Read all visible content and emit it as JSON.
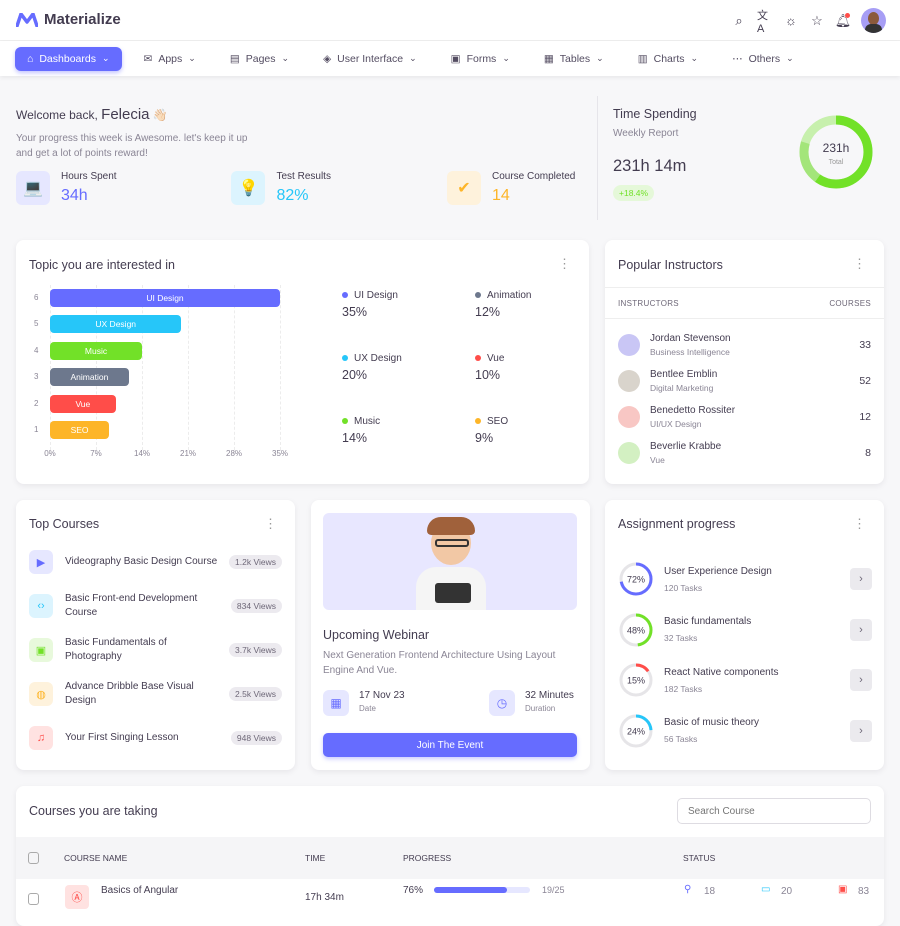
{
  "app": {
    "title": "Materialize"
  },
  "nav": [
    {
      "label": "Dashboards",
      "icon": "home-icon",
      "active": true
    },
    {
      "label": "Apps",
      "icon": "mail-icon"
    },
    {
      "label": "Pages",
      "icon": "file-icon"
    },
    {
      "label": "User Interface",
      "icon": "layers-icon"
    },
    {
      "label": "Forms",
      "icon": "form-icon"
    },
    {
      "label": "Tables",
      "icon": "table-icon"
    },
    {
      "label": "Charts",
      "icon": "chart-icon"
    },
    {
      "label": "Others",
      "icon": "more-icon"
    }
  ],
  "welcome": {
    "greeting": "Welcome back,",
    "name": "Felecia",
    "emoji": "👋🏻",
    "text": "Your progress this week is Awesome. let's keep it up and get a lot of points reward!",
    "stats": [
      {
        "label": "Hours Spent",
        "value": "34h",
        "color": "#666cff",
        "bg": "#e6e7ff",
        "icon": "laptop-icon",
        "glyph": "💻"
      },
      {
        "label": "Test Results",
        "value": "82%",
        "color": "#26c6f9",
        "bg": "#dcf4fe",
        "icon": "lightbulb-icon",
        "glyph": "💡"
      },
      {
        "label": "Course Completed",
        "value": "14",
        "color": "#fdb528",
        "bg": "#fef2dc",
        "icon": "badge-check-icon",
        "glyph": "✔"
      }
    ]
  },
  "time_spending": {
    "title": "Time Spending",
    "subtitle": "Weekly Report",
    "value": "231h 14m",
    "change": "+18.4%",
    "donut_value": "231h",
    "donut_label": "Total"
  },
  "topics": {
    "title": "Topic you are interested in",
    "chart_data": {
      "type": "bar",
      "orientation": "horizontal",
      "categories": [
        "UI Design",
        "UX Design",
        "Music",
        "Animation",
        "Vue",
        "SEO"
      ],
      "values": [
        35,
        20,
        14,
        12,
        10,
        9
      ],
      "y_ticks": [
        "6",
        "5",
        "4",
        "3",
        "2",
        "1"
      ],
      "x_ticks": [
        "0%",
        "7%",
        "14%",
        "21%",
        "28%",
        "35%"
      ],
      "xlim": [
        0,
        35
      ],
      "colors": [
        "#666cff",
        "#26c6f9",
        "#72e128",
        "#6d788d",
        "#ff4d49",
        "#fdb528"
      ]
    },
    "legend": [
      {
        "label": "UI Design",
        "value": "35%",
        "color": "#666cff"
      },
      {
        "label": "Animation",
        "value": "12%",
        "color": "#6d788d"
      },
      {
        "label": "UX Design",
        "value": "20%",
        "color": "#26c6f9"
      },
      {
        "label": "Vue",
        "value": "10%",
        "color": "#ff4d49"
      },
      {
        "label": "Music",
        "value": "14%",
        "color": "#72e128"
      },
      {
        "label": "SEO",
        "value": "9%",
        "color": "#fdb528"
      }
    ]
  },
  "instructors": {
    "title": "Popular Instructors",
    "col1": "INSTRUCTORS",
    "col2": "COURSES",
    "rows": [
      {
        "name": "Jordan Stevenson",
        "role": "Business Intelligence",
        "courses": "33",
        "bg": "#c9c6f5"
      },
      {
        "name": "Bentlee Emblin",
        "role": "Digital Marketing",
        "courses": "52",
        "bg": "#d9d4cc"
      },
      {
        "name": "Benedetto Rossiter",
        "role": "UI/UX Design",
        "courses": "12",
        "bg": "#f8c7c4"
      },
      {
        "name": "Beverlie Krabbe",
        "role": "Vue",
        "courses": "8",
        "bg": "#d3f0c2"
      }
    ]
  },
  "top_courses": {
    "title": "Top Courses",
    "rows": [
      {
        "title": "Videography Basic Design Course",
        "views": "1.2k Views",
        "icon": "video-icon",
        "glyph": "▶",
        "color": "#666cff",
        "bg": "#e6e7ff"
      },
      {
        "title": "Basic Front-end Development Course",
        "views": "834 Views",
        "icon": "code-icon",
        "glyph": "‹›",
        "color": "#26c6f9",
        "bg": "#dcf4fe"
      },
      {
        "title": "Basic Fundamentals of Photography",
        "views": "3.7k Views",
        "icon": "image-icon",
        "glyph": "▣",
        "color": "#72e128",
        "bg": "#e8f9dc"
      },
      {
        "title": "Advance Dribble Base Visual Design",
        "views": "2.5k Views",
        "icon": "palette-icon",
        "glyph": "◍",
        "color": "#fdb528",
        "bg": "#fef2dc"
      },
      {
        "title": "Your First Singing Lesson",
        "views": "948 Views",
        "icon": "music-icon",
        "glyph": "♫",
        "color": "#ff4d49",
        "bg": "#ffe2e1"
      }
    ]
  },
  "webinar": {
    "title": "Upcoming Webinar",
    "text": "Next Generation Frontend Architecture Using Layout Engine And Vue.",
    "date": "17 Nov 23",
    "date_label": "Date",
    "duration": "32 Minutes",
    "duration_label": "Duration",
    "button": "Join The Event"
  },
  "assignments": {
    "title": "Assignment progress",
    "rows": [
      {
        "title": "User Experience Design",
        "tasks": "120 Tasks",
        "percent": "72%",
        "value": 72,
        "color": "#666cff"
      },
      {
        "title": "Basic fundamentals",
        "tasks": "32 Tasks",
        "percent": "48%",
        "value": 48,
        "color": "#72e128"
      },
      {
        "title": "React Native components",
        "tasks": "182 Tasks",
        "percent": "15%",
        "value": 15,
        "color": "#ff4d49"
      },
      {
        "title": "Basic of music theory",
        "tasks": "56 Tasks",
        "percent": "24%",
        "value": 24,
        "color": "#26c6f9"
      }
    ]
  },
  "courses_table": {
    "title": "Courses you are taking",
    "search_placeholder": "Search Course",
    "headers": [
      "COURSE NAME",
      "TIME",
      "PROGRESS",
      "STATUS"
    ],
    "rows": [
      {
        "name": "Basics of Angular",
        "time": "17h 34m",
        "progress": "76%",
        "progress_value": 76,
        "count": "19/25",
        "status1": "18",
        "status2": "20",
        "status3": "83"
      }
    ]
  }
}
